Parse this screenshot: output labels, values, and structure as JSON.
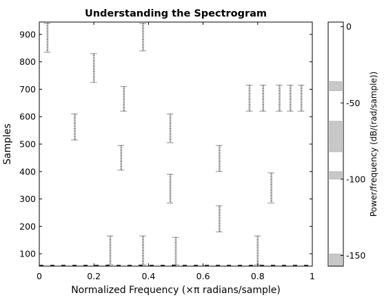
{
  "chart_data": {
    "type": "heatmap",
    "title": "Understanding the Spectrogram",
    "xlabel": "Normalized Frequency (×π radians/sample)",
    "ylabel": "Samples",
    "colorbar_label": "Power/frequency (dB/(rad/sample))",
    "xlim": [
      0,
      1
    ],
    "ylim": [
      55,
      945
    ],
    "clim": [
      -157,
      3
    ],
    "grid": false,
    "colormap": "grayscale (white = high power, black = low power)",
    "xticks": [
      {
        "value": 0,
        "label": "0"
      },
      {
        "value": 0.2,
        "label": "0.2"
      },
      {
        "value": 0.4,
        "label": "0.4"
      },
      {
        "value": 0.6,
        "label": "0.6"
      },
      {
        "value": 0.8,
        "label": "0.8"
      },
      {
        "value": 1,
        "label": "1"
      }
    ],
    "yticks": [
      {
        "value": 100,
        "label": "100"
      },
      {
        "value": 200,
        "label": "200"
      },
      {
        "value": 300,
        "label": "300"
      },
      {
        "value": 400,
        "label": "400"
      },
      {
        "value": 500,
        "label": "500"
      },
      {
        "value": 600,
        "label": "600"
      },
      {
        "value": 700,
        "label": "700"
      },
      {
        "value": 800,
        "label": "800"
      },
      {
        "value": 900,
        "label": "900"
      }
    ],
    "colorbar_ticks": [
      {
        "value": 0,
        "label": "0"
      },
      {
        "value": -50,
        "label": "-50"
      },
      {
        "value": -100,
        "label": "-100"
      },
      {
        "value": -150,
        "label": "-150"
      }
    ],
    "colorbar_bands": [
      {
        "from": -42,
        "to": -36
      },
      {
        "from": -82,
        "to": -62
      },
      {
        "from": -100,
        "to": -95
      },
      {
        "from": -157,
        "to": -149
      }
    ],
    "tone_segments": [
      {
        "x": 0.03,
        "y_start": 835,
        "y_end": 940
      },
      {
        "x": 0.38,
        "y_start": 840,
        "y_end": 940
      },
      {
        "x": 0.2,
        "y_start": 725,
        "y_end": 830
      },
      {
        "x": 0.31,
        "y_start": 620,
        "y_end": 710
      },
      {
        "x": 0.13,
        "y_start": 515,
        "y_end": 610
      },
      {
        "x": 0.48,
        "y_start": 505,
        "y_end": 610
      },
      {
        "x": 0.3,
        "y_start": 405,
        "y_end": 495
      },
      {
        "x": 0.66,
        "y_start": 400,
        "y_end": 495
      },
      {
        "x": 0.48,
        "y_start": 285,
        "y_end": 390
      },
      {
        "x": 0.85,
        "y_start": 285,
        "y_end": 395
      },
      {
        "x": 0.66,
        "y_start": 180,
        "y_end": 275
      },
      {
        "x": 0.8,
        "y_start": 60,
        "y_end": 165
      },
      {
        "x": 0.38,
        "y_start": 60,
        "y_end": 165
      },
      {
        "x": 0.26,
        "y_start": 60,
        "y_end": 165
      },
      {
        "x": 0.5,
        "y_start": 60,
        "y_end": 160
      },
      {
        "x": 0.77,
        "y_start": 620,
        "y_end": 715
      },
      {
        "x": 0.82,
        "y_start": 620,
        "y_end": 715
      },
      {
        "x": 0.88,
        "y_start": 620,
        "y_end": 715
      },
      {
        "x": 0.92,
        "y_start": 620,
        "y_end": 715
      },
      {
        "x": 0.96,
        "y_start": 620,
        "y_end": 715
      }
    ]
  }
}
